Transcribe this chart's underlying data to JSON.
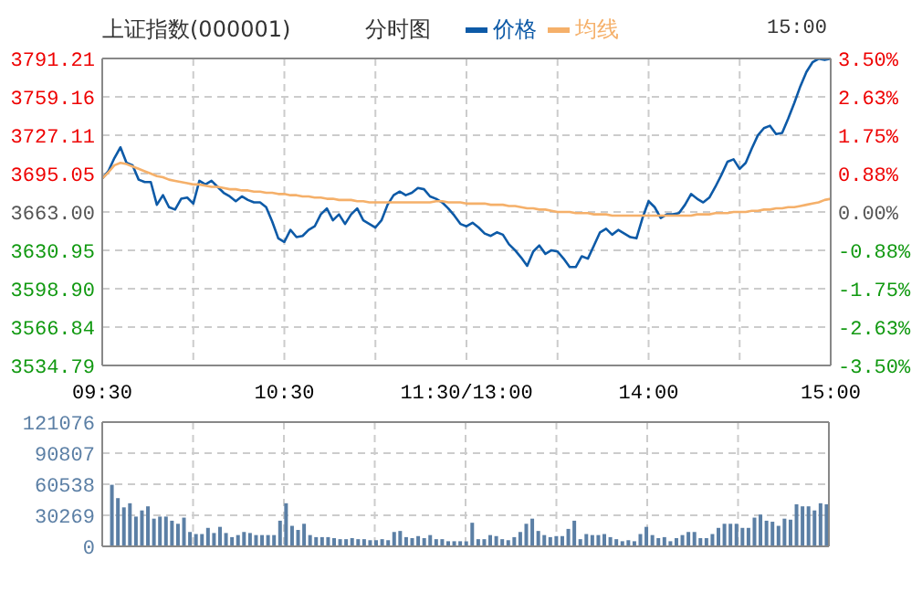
{
  "chart_data": [
    {
      "type": "line",
      "title": "上证指数(000001)",
      "subtitle": "分时图",
      "legend": "top",
      "grid": true,
      "annotations": [
        "15:00"
      ],
      "categories": [
        "09:30",
        null,
        null,
        null,
        null,
        null,
        null,
        null,
        null,
        null,
        null,
        null,
        null,
        null,
        null,
        null,
        null,
        null,
        null,
        null,
        null,
        null,
        null,
        null,
        null,
        null,
        null,
        null,
        null,
        null,
        "10:30",
        null,
        null,
        null,
        null,
        null,
        null,
        null,
        null,
        null,
        null,
        null,
        null,
        null,
        null,
        null,
        null,
        null,
        null,
        null,
        null,
        null,
        null,
        null,
        null,
        null,
        null,
        null,
        null,
        null,
        "11:30/13:00",
        null,
        null,
        null,
        null,
        null,
        null,
        null,
        null,
        null,
        null,
        null,
        null,
        null,
        null,
        null,
        null,
        null,
        null,
        null,
        null,
        null,
        null,
        null,
        null,
        null,
        null,
        null,
        null,
        null,
        "14:00",
        null,
        null,
        null,
        null,
        null,
        null,
        null,
        null,
        null,
        null,
        null,
        null,
        null,
        null,
        null,
        null,
        null,
        null,
        null,
        null,
        null,
        null,
        null,
        null,
        null,
        null,
        null,
        null,
        null,
        "15:00"
      ],
      "ylim": [
        3534.79,
        3791.21
      ],
      "yticks": [
        {
          "value": 3534.79,
          "label": "3534.79"
        },
        {
          "value": 3566.84,
          "label": "3566.84"
        },
        {
          "value": 3598.9,
          "label": "3598.90"
        },
        {
          "value": 3630.95,
          "label": "3630.95"
        },
        {
          "value": 3663,
          "label": "3663.00"
        },
        {
          "value": 3695.05,
          "label": "3695.05"
        },
        {
          "value": 3727.11,
          "label": "3727.11"
        },
        {
          "value": 3759.16,
          "label": "3759.16"
        },
        {
          "value": 3791.21,
          "label": "3791.21"
        }
      ],
      "y2lim": [
        -3.5,
        3.5
      ],
      "y2ticks": [
        {
          "value": -3.5,
          "label": "-3.50%"
        },
        {
          "value": -2.63,
          "label": "-2.63%"
        },
        {
          "value": -1.75,
          "label": "-1.75%"
        },
        {
          "value": -0.88,
          "label": "-0.88%"
        },
        {
          "value": 0,
          "label": "0.00%"
        },
        {
          "value": 0.88,
          "label": "0.88%"
        },
        {
          "value": 1.75,
          "label": "1.75%"
        },
        {
          "value": 2.63,
          "label": "2.63%"
        },
        {
          "value": 3.5,
          "label": "3.50%"
        }
      ],
      "series": [
        {
          "name": "价格",
          "color": "#0d5aa7",
          "values": [
            3691,
            3697,
            3708,
            3717,
            3704,
            3702,
            3690,
            3688,
            3688,
            3669,
            3677,
            3667,
            3665,
            3674,
            3675,
            3670,
            3689,
            3686,
            3689,
            3684,
            3679,
            3676,
            3672,
            3676,
            3673,
            3671,
            3671,
            3667,
            3655,
            3641,
            3638,
            3648,
            3642,
            3643,
            3648,
            3651,
            3661,
            3666,
            3656,
            3661,
            3653,
            3661,
            3666,
            3656,
            3653,
            3650,
            3656,
            3669,
            3677,
            3680,
            3677,
            3679,
            3683,
            3682,
            3676,
            3674,
            3671,
            3666,
            3660,
            3653,
            3651,
            3654,
            3650,
            3645,
            3643,
            3646,
            3644,
            3636,
            3631,
            3625,
            3618,
            3630,
            3635,
            3628,
            3631,
            3630,
            3624,
            3617,
            3617,
            3626,
            3624,
            3635,
            3646,
            3649,
            3644,
            3648,
            3645,
            3642,
            3641,
            3658,
            3672,
            3667,
            3658,
            3661,
            3661,
            3662,
            3669,
            3678,
            3674,
            3671,
            3675,
            3684,
            3694,
            3705,
            3707,
            3699,
            3704,
            3716,
            3727,
            3733,
            3735,
            3728,
            3729,
            3741,
            3754,
            3768,
            3780,
            3788,
            3791,
            3790,
            3791
          ]
        },
        {
          "name": "均线",
          "color": "#f5b06a",
          "values": [
            3691,
            3696,
            3702,
            3704,
            3703,
            3701,
            3699,
            3697,
            3695,
            3693,
            3692,
            3690,
            3689,
            3688,
            3687,
            3686,
            3686,
            3685,
            3684,
            3684,
            3683,
            3682,
            3682,
            3681,
            3681,
            3680,
            3680,
            3679,
            3679,
            3678,
            3678,
            3677,
            3677,
            3676,
            3676,
            3675,
            3675,
            3674,
            3674,
            3673,
            3673,
            3673,
            3672,
            3672,
            3671,
            3671,
            3671,
            3671,
            3671,
            3671,
            3671,
            3671,
            3671,
            3671,
            3671,
            3672,
            3672,
            3671,
            3671,
            3671,
            3670,
            3670,
            3670,
            3670,
            3669,
            3669,
            3669,
            3668,
            3668,
            3667,
            3666,
            3666,
            3665,
            3665,
            3664,
            3663,
            3663,
            3663,
            3662,
            3662,
            3662,
            3661,
            3661,
            3661,
            3660,
            3660,
            3660,
            3660,
            3660,
            3660,
            3660,
            3660,
            3660,
            3660,
            3660,
            3660,
            3660,
            3660,
            3661,
            3661,
            3661,
            3662,
            3662,
            3662,
            3663,
            3663,
            3663,
            3664,
            3664,
            3665,
            3665,
            3666,
            3666,
            3667,
            3667,
            3668,
            3669,
            3670,
            3671,
            3673,
            3674
          ]
        }
      ]
    },
    {
      "type": "bar",
      "grid": true,
      "tick_labels": "y",
      "categories": [
        null,
        null,
        null,
        null,
        null,
        null,
        null,
        null,
        null,
        null,
        null,
        null,
        null,
        null,
        null,
        null,
        null,
        null,
        null,
        null,
        null,
        null,
        null,
        null,
        null,
        null,
        null,
        null,
        null,
        null,
        null,
        null,
        null,
        null,
        null,
        null,
        null,
        null,
        null,
        null,
        null,
        null,
        null,
        null,
        null,
        null,
        null,
        null,
        null,
        null,
        null,
        null,
        null,
        null,
        null,
        null,
        null,
        null,
        null,
        null,
        null,
        null,
        null,
        null,
        null,
        null,
        null,
        null,
        null,
        null,
        null,
        null,
        null,
        null,
        null,
        null,
        null,
        null,
        null,
        null,
        null,
        null,
        null,
        null,
        null,
        null,
        null,
        null,
        null,
        null,
        null,
        null,
        null,
        null,
        null,
        null,
        null,
        null,
        null,
        null,
        null,
        null,
        null,
        null,
        null,
        null,
        null,
        null,
        null,
        null,
        null,
        null,
        null,
        null,
        null,
        null,
        null,
        null,
        null,
        null,
        null
      ],
      "ylim": [
        0,
        121076
      ],
      "yticks": [
        0,
        30269,
        60538,
        90807,
        121076
      ],
      "series": [
        {
          "color": "#5b7fa5",
          "values": [
            null,
            60000,
            47000,
            38000,
            42000,
            29000,
            35000,
            39000,
            27000,
            29000,
            29000,
            25000,
            22000,
            28000,
            14000,
            12000,
            12000,
            18000,
            13000,
            19000,
            13000,
            9000,
            11000,
            14000,
            13000,
            11000,
            11000,
            11000,
            11000,
            25000,
            42000,
            20000,
            16000,
            22000,
            11000,
            9000,
            9000,
            9000,
            8000,
            7000,
            7000,
            8000,
            7000,
            7000,
            6000,
            6000,
            7000,
            6000,
            14000,
            15000,
            9000,
            8000,
            10000,
            8000,
            11000,
            7000,
            7000,
            5000,
            5000,
            5000,
            5000,
            23000,
            7000,
            7000,
            11000,
            10000,
            7000,
            6000,
            9000,
            14000,
            22000,
            27000,
            15000,
            11000,
            9000,
            10000,
            10000,
            17000,
            25000,
            7000,
            12000,
            11000,
            11000,
            12000,
            9000,
            7000,
            5000,
            6000,
            5000,
            12000,
            19000,
            11000,
            8000,
            9000,
            5000,
            8000,
            11000,
            14000,
            14000,
            8000,
            8000,
            12000,
            18000,
            22000,
            22000,
            22000,
            18000,
            18000,
            28000,
            31000,
            25000,
            24000,
            20000,
            27000,
            26000,
            41000,
            39000,
            39000,
            35000,
            42000,
            41000
          ]
        }
      ]
    }
  ]
}
